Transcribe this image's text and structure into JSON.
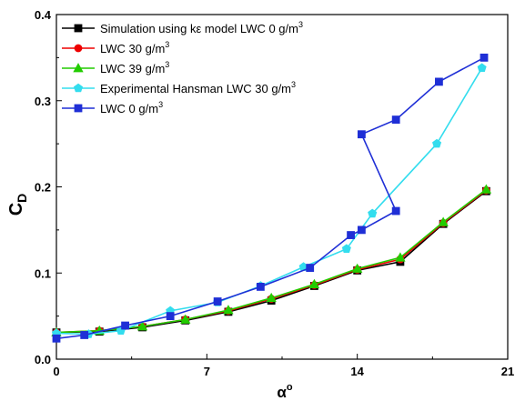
{
  "chart_data": {
    "type": "line",
    "xlabel_main": "α",
    "xlabel_sup": "o",
    "ylabel_main": "C",
    "ylabel_sub": "D",
    "xlim": [
      0,
      21
    ],
    "ylim": [
      0,
      0.4
    ],
    "xticks": [
      0,
      7,
      14,
      21
    ],
    "yticks": [
      0,
      0.1,
      0.2,
      0.3,
      0.4
    ],
    "xtick_labels": [
      "0",
      "7",
      "14",
      "21"
    ],
    "ytick_labels": [
      "0.0",
      "0.1",
      "0.2",
      "0.3",
      "0.4"
    ],
    "legend_position": "top-left",
    "grid": false,
    "series": [
      {
        "label_main": "Simulation using kε model LWC 0 g/m",
        "label_sup": "3",
        "color": "#000000",
        "marker": "square",
        "x": [
          0,
          2,
          4,
          6,
          8,
          10,
          12,
          14,
          16,
          18,
          20
        ],
        "y": [
          0.031,
          0.032,
          0.037,
          0.045,
          0.055,
          0.068,
          0.085,
          0.103,
          0.113,
          0.157,
          0.195
        ]
      },
      {
        "label_main": "LWC 30 g/m",
        "label_sup": "3",
        "color": "#ee0000",
        "marker": "circle",
        "x": [
          0,
          2,
          4,
          6,
          8,
          10,
          12,
          14,
          16,
          18,
          20
        ],
        "y": [
          0.031,
          0.033,
          0.038,
          0.046,
          0.056,
          0.07,
          0.086,
          0.104,
          0.116,
          0.158,
          0.196
        ]
      },
      {
        "label_main": "LWC 39 g/m",
        "label_sup": "3",
        "color": "#22cc00",
        "marker": "triangle",
        "x": [
          0,
          2,
          4,
          6,
          8,
          10,
          12,
          14,
          16,
          18,
          20
        ],
        "y": [
          0.031,
          0.033,
          0.038,
          0.046,
          0.057,
          0.071,
          0.087,
          0.105,
          0.118,
          0.159,
          0.197
        ]
      },
      {
        "label_main": "Experimental Hansman LWC 30 g/m",
        "label_sup": "3",
        "color": "#33ddee",
        "marker": "pentagon",
        "x": [
          0,
          1.5,
          3,
          5.3,
          7.5,
          9.5,
          11.5,
          13.5,
          14.7,
          17.7,
          19.8
        ],
        "y": [
          0.03,
          0.029,
          0.033,
          0.056,
          0.066,
          0.085,
          0.107,
          0.128,
          0.169,
          0.25,
          0.338
        ]
      },
      {
        "label_main": "LWC 0 g/m",
        "label_sup": "3",
        "color": "#1f2fd6",
        "marker": "square",
        "x": [
          0,
          1.3,
          3.2,
          5.3,
          7.5,
          9.5,
          11.8,
          13.7,
          14.2,
          15.8,
          14.2,
          15.8,
          17.8,
          19.9
        ],
        "y": [
          0.024,
          0.028,
          0.039,
          0.05,
          0.067,
          0.084,
          0.106,
          0.144,
          0.15,
          0.172,
          0.261,
          0.278,
          0.322,
          0.35
        ]
      }
    ]
  }
}
